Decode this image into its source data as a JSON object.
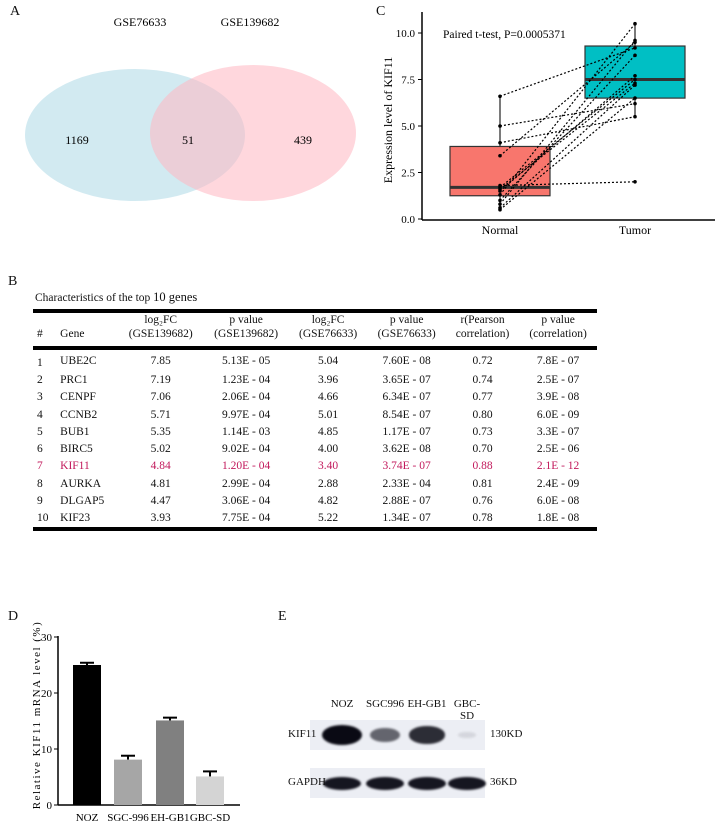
{
  "panels": {
    "A": "A",
    "B": "B",
    "C": "C",
    "D": "D",
    "E": "E"
  },
  "chart_data": [
    {
      "type": "venn",
      "sets": [
        {
          "name": "GSE76633",
          "only": 1169,
          "color": "#add8e6"
        },
        {
          "name": "GSE139682",
          "only": 439,
          "color": "#ffb6c1"
        }
      ],
      "intersection": 51
    },
    {
      "type": "box",
      "ylabel": "Expression level of  KIF11",
      "annotation": "Paired t-test, P=0.0005371",
      "categories": [
        "Normal",
        "Tumor"
      ],
      "ylim": [
        0,
        11
      ],
      "yticks": [
        "0.0",
        "2.5",
        "5.0",
        "7.5",
        "10.0"
      ],
      "colors": [
        "#f8766d",
        "#00bfc4"
      ],
      "boxes": [
        {
          "min": 0.5,
          "q1": 1.25,
          "median": 1.7,
          "q3": 3.9,
          "max": 6.6
        },
        {
          "min": 5.5,
          "q1": 6.5,
          "median": 7.5,
          "q3": 9.3,
          "max": 10.5
        }
      ],
      "pairs": [
        [
          6.6,
          9.2
        ],
        [
          5.0,
          6.2
        ],
        [
          4.1,
          5.5
        ],
        [
          3.4,
          9.5
        ],
        [
          1.8,
          2.0
        ],
        [
          1.7,
          7.5
        ],
        [
          1.6,
          7.3
        ],
        [
          1.5,
          7.7
        ],
        [
          1.3,
          10.5
        ],
        [
          1.0,
          8.8
        ],
        [
          0.8,
          9.6
        ],
        [
          0.6,
          7.2
        ],
        [
          0.5,
          6.5
        ]
      ]
    },
    {
      "type": "bar",
      "ylabel": "Relative KIF11 mRNA level (%)",
      "categories": [
        "NOZ",
        "SGC-996",
        "EH-GB1",
        "GBC-SD"
      ],
      "values": [
        25.0,
        8.1,
        15.1,
        5.1
      ],
      "errors": [
        0.4,
        0.7,
        0.5,
        0.9
      ],
      "colors": [
        "#000000",
        "#a6a6a6",
        "#808080",
        "#d4d4d4"
      ],
      "ylim": [
        0,
        30
      ],
      "yticks": [
        "0",
        "10",
        "20",
        "30"
      ]
    }
  ],
  "table": {
    "caption": "Characteristics of the top",
    "caption_num": "10 genes",
    "headers": [
      [
        "#",
        ""
      ],
      [
        "Gene",
        ""
      ],
      [
        "log₂FC",
        "(GSE139682)"
      ],
      [
        "p value",
        "(GSE139682)"
      ],
      [
        "log₂FC",
        "(GSE76633)"
      ],
      [
        "p value",
        "(GSE76633)"
      ],
      [
        "r(Pearson",
        "correlation)"
      ],
      [
        "p value",
        "(correlation)"
      ]
    ],
    "rows": [
      [
        "1",
        "UBE2C",
        "7.85",
        "5.13E - 05",
        "5.04",
        "7.60E - 08",
        "0.72",
        "7.8E - 07"
      ],
      [
        "2",
        "PRC1",
        "7.19",
        "1.23E - 04",
        "3.96",
        "3.65E - 07",
        "0.74",
        "2.5E - 07"
      ],
      [
        "3",
        "CENPF",
        "7.06",
        "2.06E - 04",
        "4.66",
        "6.34E - 07",
        "0.77",
        "3.9E - 08"
      ],
      [
        "4",
        "CCNB2",
        "5.71",
        "9.97E - 04",
        "5.01",
        "8.54E - 07",
        "0.80",
        "6.0E - 09"
      ],
      [
        "5",
        "BUB1",
        "5.35",
        "1.14E - 03",
        "4.85",
        "1.17E - 07",
        "0.73",
        "3.3E - 07"
      ],
      [
        "6",
        "BIRC5",
        "5.02",
        "9.02E - 04",
        "4.00",
        "3.62E - 08",
        "0.70",
        "2.5E - 06"
      ],
      [
        "7",
        "KIF11",
        "4.84",
        "1.20E - 04",
        "3.40",
        "3.74E - 07",
        "0.88",
        "2.1E - 12"
      ],
      [
        "8",
        "AURKA",
        "4.81",
        "2.99E - 04",
        "2.88",
        "2.33E - 04",
        "0.81",
        "2.4E - 09"
      ],
      [
        "9",
        "DLGAP5",
        "4.47",
        "3.06E - 04",
        "4.82",
        "2.88E - 07",
        "0.76",
        "6.0E - 08"
      ],
      [
        "10",
        "KIF23",
        "3.93",
        "7.75E - 04",
        "5.22",
        "1.34E - 07",
        "0.78",
        "1.8E - 08"
      ]
    ],
    "highlight_row": 6,
    "highlight_color": "#c2185b"
  },
  "blot": {
    "lanes": [
      "NOZ",
      "SGC996",
      "EH-GB1",
      "GBC-SD"
    ],
    "rows": [
      {
        "label": "KIF11",
        "size": "130KD",
        "intensity": [
          1.0,
          0.55,
          0.8,
          0.05
        ]
      },
      {
        "label": "GAPDH",
        "size": "36KD",
        "intensity": [
          0.9,
          0.9,
          0.9,
          0.9
        ]
      }
    ]
  }
}
